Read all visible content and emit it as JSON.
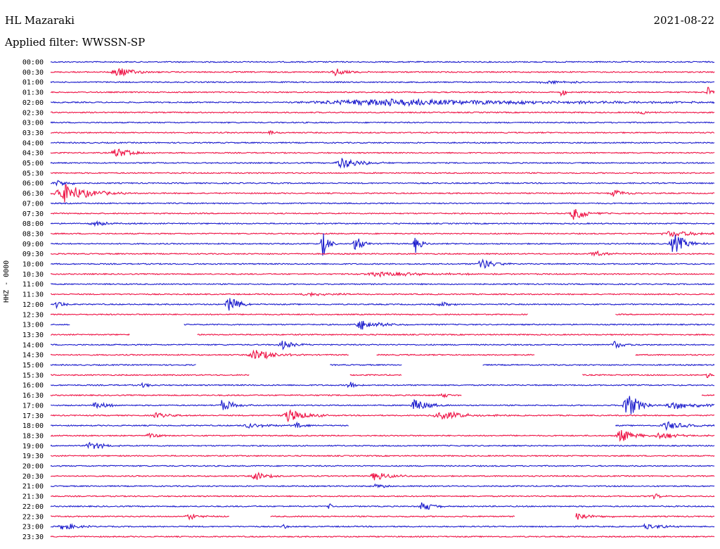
{
  "header": {
    "station": "HL Mazaraki",
    "date": "2021-08-22",
    "filter": "Applied filter: WWSSN-SP"
  },
  "channel_label": "HHZ - 0000",
  "colors": {
    "trace_a": "#1a1acc",
    "trace_b": "#ee1144",
    "text": "#000000"
  },
  "chart_data": {
    "type": "helicorder",
    "rows": [
      {
        "label": "00:00",
        "color": "blue",
        "events": [],
        "gaps": []
      },
      {
        "label": "00:30",
        "color": "red",
        "events": [
          {
            "t": 0.1,
            "amp": 7,
            "w": 0.03
          },
          {
            "t": 0.43,
            "amp": 6,
            "w": 0.02
          }
        ],
        "gaps": []
      },
      {
        "label": "01:00",
        "color": "blue",
        "events": [
          {
            "t": 0.75,
            "amp": 3,
            "w": 0.04
          }
        ],
        "gaps": []
      },
      {
        "label": "01:30",
        "color": "red",
        "events": [
          {
            "t": 0.77,
            "amp": 9,
            "w": 0.005
          },
          {
            "t": 0.99,
            "amp": 11,
            "w": 0.005
          }
        ],
        "gaps": []
      },
      {
        "label": "02:00",
        "color": "blue",
        "events": [
          {
            "t": 0.5,
            "amp": 5,
            "w": 0.3
          }
        ],
        "gaps": []
      },
      {
        "label": "02:30",
        "color": "red",
        "events": [
          {
            "t": 0.89,
            "amp": 3,
            "w": 0.02
          }
        ],
        "gaps": []
      },
      {
        "label": "03:00",
        "color": "blue",
        "events": [],
        "gaps": []
      },
      {
        "label": "03:30",
        "color": "red",
        "events": [
          {
            "t": 0.33,
            "amp": 3,
            "w": 0.01
          }
        ],
        "gaps": []
      },
      {
        "label": "04:00",
        "color": "blue",
        "events": [],
        "gaps": []
      },
      {
        "label": "04:30",
        "color": "red",
        "events": [
          {
            "t": 0.1,
            "amp": 7,
            "w": 0.025
          }
        ],
        "gaps": []
      },
      {
        "label": "05:00",
        "color": "blue",
        "events": [
          {
            "t": 0.44,
            "amp": 8,
            "w": 0.03
          }
        ],
        "gaps": []
      },
      {
        "label": "05:30",
        "color": "red",
        "events": [],
        "gaps": []
      },
      {
        "label": "06:00",
        "color": "blue",
        "events": [
          {
            "t": 0.01,
            "amp": 5,
            "w": 0.02
          }
        ],
        "gaps": []
      },
      {
        "label": "06:30",
        "color": "red",
        "events": [
          {
            "t": 0.02,
            "amp": 14,
            "w": 0.04
          },
          {
            "t": 0.85,
            "amp": 5,
            "w": 0.02
          }
        ],
        "gaps": []
      },
      {
        "label": "07:00",
        "color": "blue",
        "events": [],
        "gaps": []
      },
      {
        "label": "07:30",
        "color": "red",
        "events": [
          {
            "t": 0.79,
            "amp": 10,
            "w": 0.02
          }
        ],
        "gaps": []
      },
      {
        "label": "08:00",
        "color": "blue",
        "events": [
          {
            "t": 0.07,
            "amp": 3,
            "w": 0.03
          }
        ],
        "gaps": []
      },
      {
        "label": "08:30",
        "color": "red",
        "events": [
          {
            "t": 0.94,
            "amp": 4,
            "w": 0.06
          }
        ],
        "gaps": []
      },
      {
        "label": "09:00",
        "color": "blue",
        "events": [
          {
            "t": 0.41,
            "amp": 18,
            "w": 0.01
          },
          {
            "t": 0.46,
            "amp": 14,
            "w": 0.01
          },
          {
            "t": 0.55,
            "amp": 13,
            "w": 0.01
          },
          {
            "t": 0.94,
            "amp": 15,
            "w": 0.02
          }
        ],
        "gaps": []
      },
      {
        "label": "09:30",
        "color": "red",
        "events": [
          {
            "t": 0.82,
            "amp": 4,
            "w": 0.02
          }
        ],
        "gaps": []
      },
      {
        "label": "10:00",
        "color": "blue",
        "events": [
          {
            "t": 0.65,
            "amp": 8,
            "w": 0.02
          }
        ],
        "gaps": []
      },
      {
        "label": "10:30",
        "color": "red",
        "events": [
          {
            "t": 0.5,
            "amp": 3,
            "w": 0.1
          }
        ],
        "gaps": []
      },
      {
        "label": "11:00",
        "color": "blue",
        "events": [],
        "gaps": []
      },
      {
        "label": "11:30",
        "color": "red",
        "events": [
          {
            "t": 0.39,
            "amp": 3,
            "w": 0.04
          }
        ],
        "gaps": []
      },
      {
        "label": "12:00",
        "color": "blue",
        "events": [
          {
            "t": 0.01,
            "amp": 6,
            "w": 0.01
          },
          {
            "t": 0.27,
            "amp": 10,
            "w": 0.02
          },
          {
            "t": 0.59,
            "amp": 3,
            "w": 0.02
          }
        ],
        "gaps": []
      },
      {
        "label": "12:30",
        "color": "red",
        "events": [],
        "gaps": [
          [
            0.72,
            0.85
          ]
        ]
      },
      {
        "label": "13:00",
        "color": "blue",
        "events": [
          {
            "t": 0.47,
            "amp": 7,
            "w": 0.03
          }
        ],
        "gaps": [
          [
            0.03,
            0.2
          ]
        ]
      },
      {
        "label": "13:30",
        "color": "red",
        "events": [],
        "gaps": [
          [
            0.12,
            0.22
          ]
        ]
      },
      {
        "label": "14:00",
        "color": "blue",
        "events": [
          {
            "t": 0.35,
            "amp": 6,
            "w": 0.02
          },
          {
            "t": 0.85,
            "amp": 5,
            "w": 0.02
          }
        ],
        "gaps": []
      },
      {
        "label": "14:30",
        "color": "red",
        "events": [
          {
            "t": 0.31,
            "amp": 8,
            "w": 0.03
          }
        ],
        "gaps": [
          [
            0.45,
            0.49
          ],
          [
            0.73,
            0.88
          ]
        ]
      },
      {
        "label": "15:00",
        "color": "blue",
        "events": [],
        "gaps": [
          [
            0.22,
            0.42
          ],
          [
            0.53,
            0.65
          ]
        ]
      },
      {
        "label": "15:30",
        "color": "red",
        "events": [
          {
            "t": 0.99,
            "amp": 4,
            "w": 0.01
          }
        ],
        "gaps": [
          [
            0.3,
            0.45
          ],
          [
            0.53,
            0.8
          ]
        ]
      },
      {
        "label": "16:00",
        "color": "blue",
        "events": [
          {
            "t": 0.14,
            "amp": 4,
            "w": 0.01
          },
          {
            "t": 0.45,
            "amp": 8,
            "w": 0.01
          }
        ],
        "gaps": []
      },
      {
        "label": "16:30",
        "color": "red",
        "events": [
          {
            "t": 0.59,
            "amp": 4,
            "w": 0.01
          }
        ],
        "gaps": [
          [
            0.62,
            0.98
          ]
        ]
      },
      {
        "label": "17:00",
        "color": "blue",
        "events": [
          {
            "t": 0.07,
            "amp": 5,
            "w": 0.02
          },
          {
            "t": 0.26,
            "amp": 8,
            "w": 0.02
          },
          {
            "t": 0.55,
            "amp": 10,
            "w": 0.02
          },
          {
            "t": 0.87,
            "amp": 18,
            "w": 0.02
          },
          {
            "t": 0.94,
            "amp": 6,
            "w": 0.04
          }
        ],
        "gaps": []
      },
      {
        "label": "17:30",
        "color": "red",
        "events": [
          {
            "t": 0.16,
            "amp": 4,
            "w": 0.02
          },
          {
            "t": 0.36,
            "amp": 9,
            "w": 0.03
          },
          {
            "t": 0.59,
            "amp": 6,
            "w": 0.04
          }
        ],
        "gaps": []
      },
      {
        "label": "18:00",
        "color": "blue",
        "events": [
          {
            "t": 0.3,
            "amp": 4,
            "w": 0.03
          },
          {
            "t": 0.37,
            "amp": 6,
            "w": 0.01
          },
          {
            "t": 0.93,
            "amp": 6,
            "w": 0.03
          }
        ],
        "gaps": [
          [
            0.45,
            0.85
          ]
        ]
      },
      {
        "label": "18:30",
        "color": "red",
        "events": [
          {
            "t": 0.15,
            "amp": 3,
            "w": 0.02
          },
          {
            "t": 0.86,
            "amp": 10,
            "w": 0.02
          },
          {
            "t": 0.92,
            "amp": 5,
            "w": 0.03
          }
        ],
        "gaps": []
      },
      {
        "label": "19:00",
        "color": "blue",
        "events": [
          {
            "t": 0.06,
            "amp": 7,
            "w": 0.02
          }
        ],
        "gaps": []
      },
      {
        "label": "19:30",
        "color": "red",
        "events": [],
        "gaps": []
      },
      {
        "label": "20:00",
        "color": "blue",
        "events": [],
        "gaps": []
      },
      {
        "label": "20:30",
        "color": "red",
        "events": [
          {
            "t": 0.31,
            "amp": 6,
            "w": 0.02
          },
          {
            "t": 0.49,
            "amp": 6,
            "w": 0.03
          }
        ],
        "gaps": []
      },
      {
        "label": "21:00",
        "color": "blue",
        "events": [
          {
            "t": 0.49,
            "amp": 3,
            "w": 0.02
          }
        ],
        "gaps": []
      },
      {
        "label": "21:30",
        "color": "red",
        "events": [
          {
            "t": 0.91,
            "amp": 4,
            "w": 0.01
          }
        ],
        "gaps": []
      },
      {
        "label": "22:00",
        "color": "blue",
        "events": [
          {
            "t": 0.42,
            "amp": 5,
            "w": 0.005
          },
          {
            "t": 0.56,
            "amp": 7,
            "w": 0.02
          }
        ],
        "gaps": []
      },
      {
        "label": "22:30",
        "color": "red",
        "events": [
          {
            "t": 0.21,
            "amp": 4,
            "w": 0.02
          },
          {
            "t": 0.79,
            "amp": 6,
            "w": 0.03
          }
        ],
        "gaps": [
          [
            0.27,
            0.33
          ],
          [
            0.7,
            0.79
          ]
        ]
      },
      {
        "label": "23:00",
        "color": "blue",
        "events": [
          {
            "t": 0.02,
            "amp": 6,
            "w": 0.02
          },
          {
            "t": 0.35,
            "amp": 6,
            "w": 0.005
          },
          {
            "t": 0.9,
            "amp": 4,
            "w": 0.03
          }
        ],
        "gaps": []
      },
      {
        "label": "23:30",
        "color": "red",
        "events": [],
        "gaps": []
      }
    ]
  }
}
